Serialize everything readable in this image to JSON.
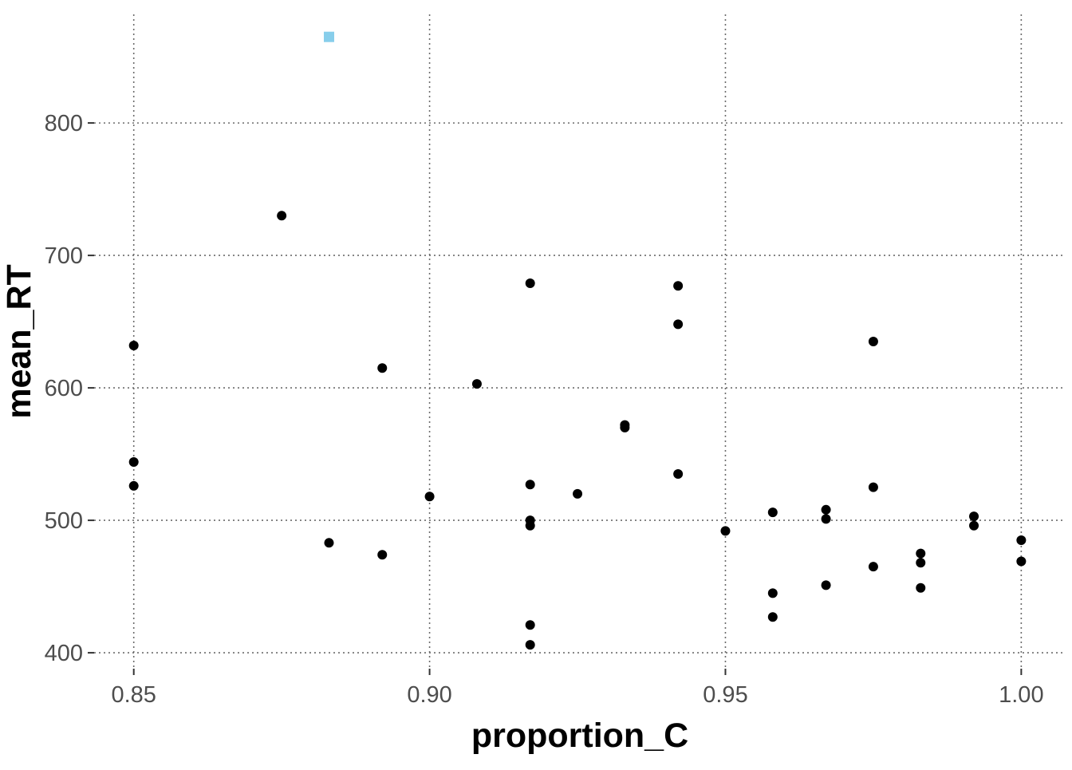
{
  "chart_data": {
    "type": "scatter",
    "xlabel": "proportion_C",
    "ylabel": "mean_RT",
    "xlim": [
      0.8433,
      1.0075
    ],
    "ylim": [
      388,
      882
    ],
    "x_ticks": [
      0.85,
      0.9,
      0.95,
      1.0
    ],
    "x_tick_labels": [
      "0.85",
      "0.90",
      "0.95",
      "1.00"
    ],
    "y_ticks": [
      400,
      500,
      600,
      700,
      800
    ],
    "y_tick_labels": [
      "400",
      "500",
      "600",
      "700",
      "800"
    ],
    "grid": true,
    "legend": "none",
    "series": [
      {
        "marker": "circle",
        "color": "#000000",
        "points": [
          {
            "x": 0.85,
            "y": 632
          },
          {
            "x": 0.85,
            "y": 544
          },
          {
            "x": 0.85,
            "y": 526
          },
          {
            "x": 0.875,
            "y": 730
          },
          {
            "x": 0.883,
            "y": 483
          },
          {
            "x": 0.892,
            "y": 615
          },
          {
            "x": 0.892,
            "y": 474
          },
          {
            "x": 0.9,
            "y": 518
          },
          {
            "x": 0.908,
            "y": 603
          },
          {
            "x": 0.917,
            "y": 679
          },
          {
            "x": 0.917,
            "y": 527
          },
          {
            "x": 0.917,
            "y": 500
          },
          {
            "x": 0.917,
            "y": 496
          },
          {
            "x": 0.917,
            "y": 421
          },
          {
            "x": 0.917,
            "y": 406
          },
          {
            "x": 0.925,
            "y": 520
          },
          {
            "x": 0.933,
            "y": 572
          },
          {
            "x": 0.933,
            "y": 570
          },
          {
            "x": 0.942,
            "y": 677
          },
          {
            "x": 0.942,
            "y": 648
          },
          {
            "x": 0.942,
            "y": 535
          },
          {
            "x": 0.95,
            "y": 492
          },
          {
            "x": 0.958,
            "y": 506
          },
          {
            "x": 0.958,
            "y": 445
          },
          {
            "x": 0.958,
            "y": 427
          },
          {
            "x": 0.967,
            "y": 508
          },
          {
            "x": 0.967,
            "y": 501
          },
          {
            "x": 0.967,
            "y": 451
          },
          {
            "x": 0.975,
            "y": 635
          },
          {
            "x": 0.975,
            "y": 525
          },
          {
            "x": 0.975,
            "y": 465
          },
          {
            "x": 0.983,
            "y": 475
          },
          {
            "x": 0.983,
            "y": 468
          },
          {
            "x": 0.983,
            "y": 449
          },
          {
            "x": 0.992,
            "y": 503
          },
          {
            "x": 0.992,
            "y": 496
          },
          {
            "x": 1.0,
            "y": 485
          },
          {
            "x": 1.0,
            "y": 469
          }
        ]
      },
      {
        "marker": "square",
        "color": "#87ceeb",
        "points": [
          {
            "x": 0.883,
            "y": 865
          }
        ]
      }
    ]
  }
}
